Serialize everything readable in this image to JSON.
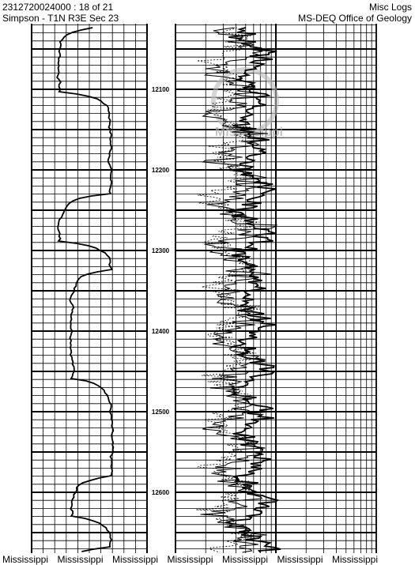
{
  "header": {
    "well_id": "2312720024000 : 18 of 21",
    "location": "Simpson - T1N R3E Sec 23",
    "log_type": "Misc Logs",
    "agency": "MS-DEQ Office of Geology"
  },
  "depth_labels": [
    "12100",
    "12200",
    "12300",
    "12400",
    "12500",
    "12600"
  ],
  "watermark": "Mississippi",
  "footer": [
    "Mississippi",
    "Mississippi",
    "Mississippi",
    "Mississippi",
    "Mississippi",
    "Mississippi",
    "Mississippi"
  ]
}
